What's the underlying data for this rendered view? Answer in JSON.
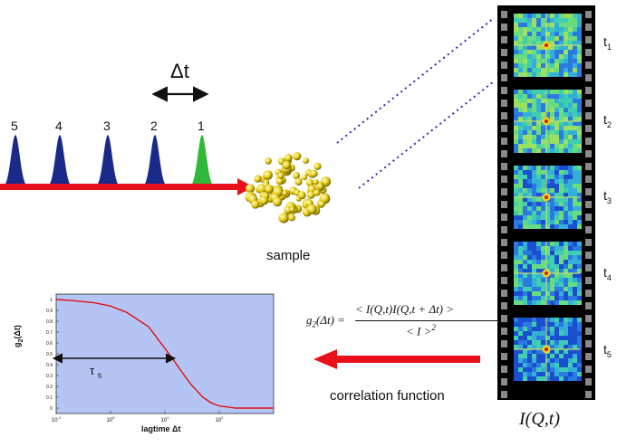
{
  "pulses": {
    "labels": [
      "5",
      "4",
      "3",
      "2",
      "1"
    ],
    "colors": [
      "#1a2a8a",
      "#1a2a8a",
      "#1a2a8a",
      "#1a2a8a",
      "#2fb83a"
    ],
    "delay_label": "Δt"
  },
  "beam_color": "#e8101a",
  "sample": {
    "label": "sample",
    "color": "#e8d018"
  },
  "film": {
    "frame_labels": [
      "t1",
      "t2",
      "t3",
      "t4",
      "t5"
    ],
    "caption": "I(Q,t)"
  },
  "correlation": {
    "label": "correlation function",
    "formula": {
      "lhs": "g2(Δt) =",
      "numerator": "< I(Q,t)I(Q,t + Δt) >",
      "denominator": "< I >2"
    }
  },
  "chart_data": {
    "type": "line",
    "xlabel": "lagtime Δt",
    "ylabel": "g2(Δt)",
    "xscale": "log",
    "xlim": [
      0.1,
      1000
    ],
    "ylim": [
      -0.05,
      1.05
    ],
    "x_ticks": [
      "10-1",
      "100",
      "101",
      "102"
    ],
    "y_ticks": [
      "0",
      "0.1",
      "0.2",
      "0.3",
      "0.4",
      "0.5",
      "0.6",
      "0.7",
      "0.8",
      "0.9",
      "1"
    ],
    "background": "#b4c4f4",
    "line_color": "#e01010",
    "tau_label": "τs",
    "series": [
      {
        "x": [
          0.1,
          0.2,
          0.5,
          1,
          2,
          5,
          10,
          15,
          20,
          30,
          50,
          70,
          100,
          200,
          500,
          1000
        ],
        "values": [
          1.0,
          0.99,
          0.97,
          0.94,
          0.88,
          0.75,
          0.55,
          0.43,
          0.34,
          0.22,
          0.1,
          0.05,
          0.02,
          0.0,
          0.0,
          0.0
        ]
      }
    ]
  }
}
